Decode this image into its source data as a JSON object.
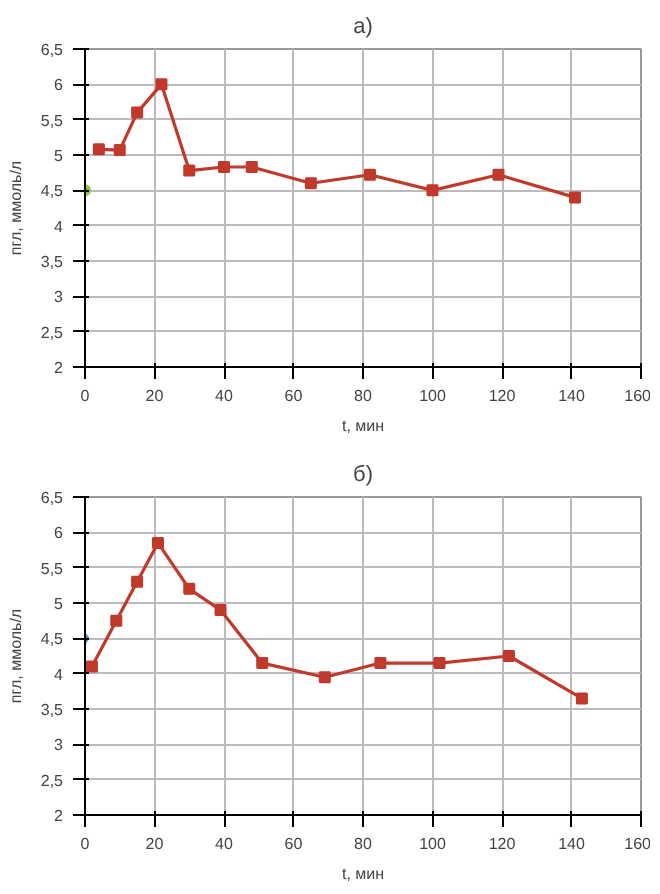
{
  "chart_data": [
    {
      "type": "line",
      "title": "а)",
      "xlabel": "t, мин",
      "ylabel": "пгл, ммоль/л",
      "xlim": [
        0,
        160
      ],
      "xticks": [
        0,
        20,
        40,
        60,
        80,
        100,
        120,
        140,
        160
      ],
      "ylim": [
        2,
        6.5
      ],
      "yticks": [
        2,
        {
          "value": 2.5,
          "label": "2,5"
        },
        3,
        {
          "value": 3.5,
          "label": "3,5"
        },
        4,
        {
          "value": 4.5,
          "label": "4,5"
        },
        5,
        {
          "value": 5.5,
          "label": "5,5"
        },
        6,
        {
          "value": 6.5,
          "label": "6,5"
        }
      ],
      "grid": true,
      "marker": "square",
      "line_style": "solid",
      "series": [
        {
          "color": "#c0392b",
          "x": [
            4,
            10,
            15,
            22,
            30,
            40,
            48,
            65,
            82,
            100,
            119,
            141
          ],
          "values": [
            5.08,
            5.07,
            5.6,
            6.0,
            4.78,
            4.83,
            4.83,
            4.6,
            4.72,
            4.5,
            4.72,
            4.4
          ]
        },
        {
          "type": "scatter",
          "marker": "circle",
          "color": "#8dc63f",
          "x": [
            0
          ],
          "values": [
            4.5
          ]
        }
      ]
    },
    {
      "type": "line",
      "title": "б)",
      "xlabel": "t, мин",
      "ylabel": "пгл, ммоль/л",
      "xlim": [
        0,
        160
      ],
      "xticks": [
        0,
        20,
        40,
        60,
        80,
        100,
        120,
        140,
        160
      ],
      "ylim": [
        2,
        6.5
      ],
      "yticks": [
        2,
        {
          "value": 2.5,
          "label": "2,5"
        },
        3,
        {
          "value": 3.5,
          "label": "3,5"
        },
        4,
        {
          "value": 4.5,
          "label": "4,5"
        },
        5,
        {
          "value": 5.5,
          "label": "5,5"
        },
        6,
        {
          "value": 6.5,
          "label": "6,5"
        }
      ],
      "grid": true,
      "marker": "square",
      "line_style": "solid",
      "series": [
        {
          "color": "#c0392b",
          "x": [
            2,
            9,
            15,
            21,
            30,
            39,
            51,
            69,
            85,
            102,
            122,
            143
          ],
          "values": [
            4.1,
            4.75,
            5.3,
            5.85,
            5.2,
            4.9,
            4.15,
            3.95,
            4.15,
            4.15,
            4.25,
            3.65
          ]
        },
        {
          "type": "scatter",
          "marker": "diamond",
          "color": "#4a90d9",
          "x": [
            0
          ],
          "values": [
            4.5
          ]
        }
      ]
    }
  ]
}
